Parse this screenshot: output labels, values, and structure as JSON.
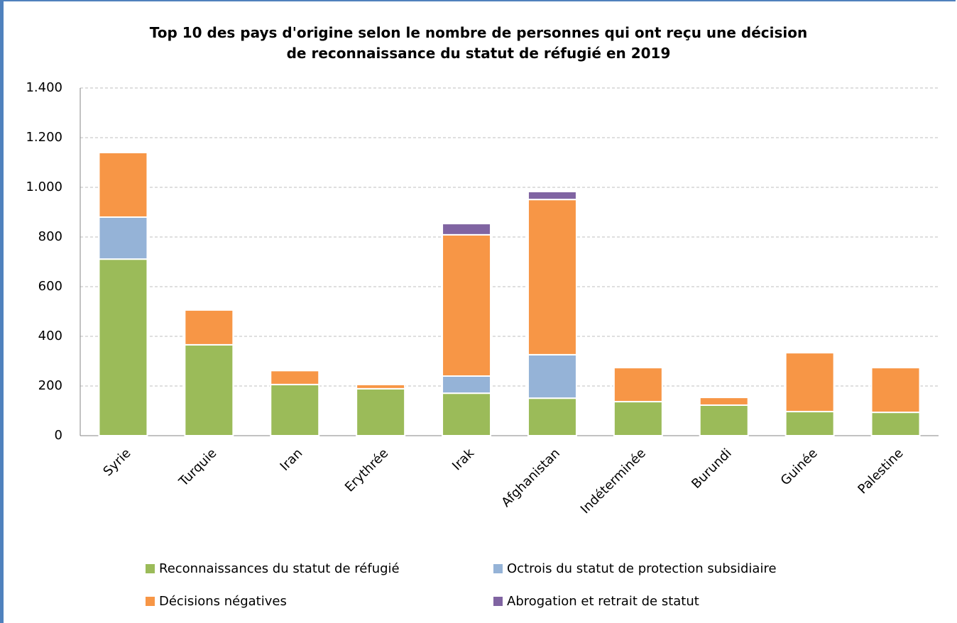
{
  "chart_data": {
    "type": "stacked-bar",
    "title": "Top 10 des pays d'origine selon le nombre de personnes qui ont reçu une décision de reconnaissance du statut de réfugié en 2019",
    "categories": [
      "Syrie",
      "Turquie",
      "Iran",
      "Erythrée",
      "Irak",
      "Afghanistan",
      "Indéterminée",
      "Burundi",
      "Guinée",
      "Palestine"
    ],
    "series": [
      {
        "name": "Reconnaissances du statut de réfugié",
        "color": "#9bbb59",
        "values": [
          711,
          366,
          206,
          189,
          171,
          151,
          137,
          123,
          97,
          94
        ]
      },
      {
        "name": "Octrois du statut de protection subsidiaire",
        "color": "#95b3d7",
        "values": [
          169,
          null,
          null,
          null,
          69,
          175,
          null,
          null,
          null,
          null
        ]
      },
      {
        "name": "Décisions négatives",
        "color": "#f79646",
        "values": [
          260,
          140,
          56,
          17,
          569,
          625,
          137,
          31,
          237,
          180
        ]
      },
      {
        "name": "Abrogation et retrait de statut",
        "color": "#8064a2",
        "values": [
          null,
          null,
          null,
          null,
          45,
          32,
          null,
          null,
          null,
          null
        ]
      }
    ],
    "ylim": [
      0,
      1400
    ],
    "yticks": [
      0,
      200,
      400,
      600,
      800,
      {
        "value": 1000,
        "label": "1.000"
      },
      {
        "value": 1200,
        "label": "1.200"
      },
      {
        "value": 1400,
        "label": "1.400"
      }
    ],
    "grid": true
  }
}
